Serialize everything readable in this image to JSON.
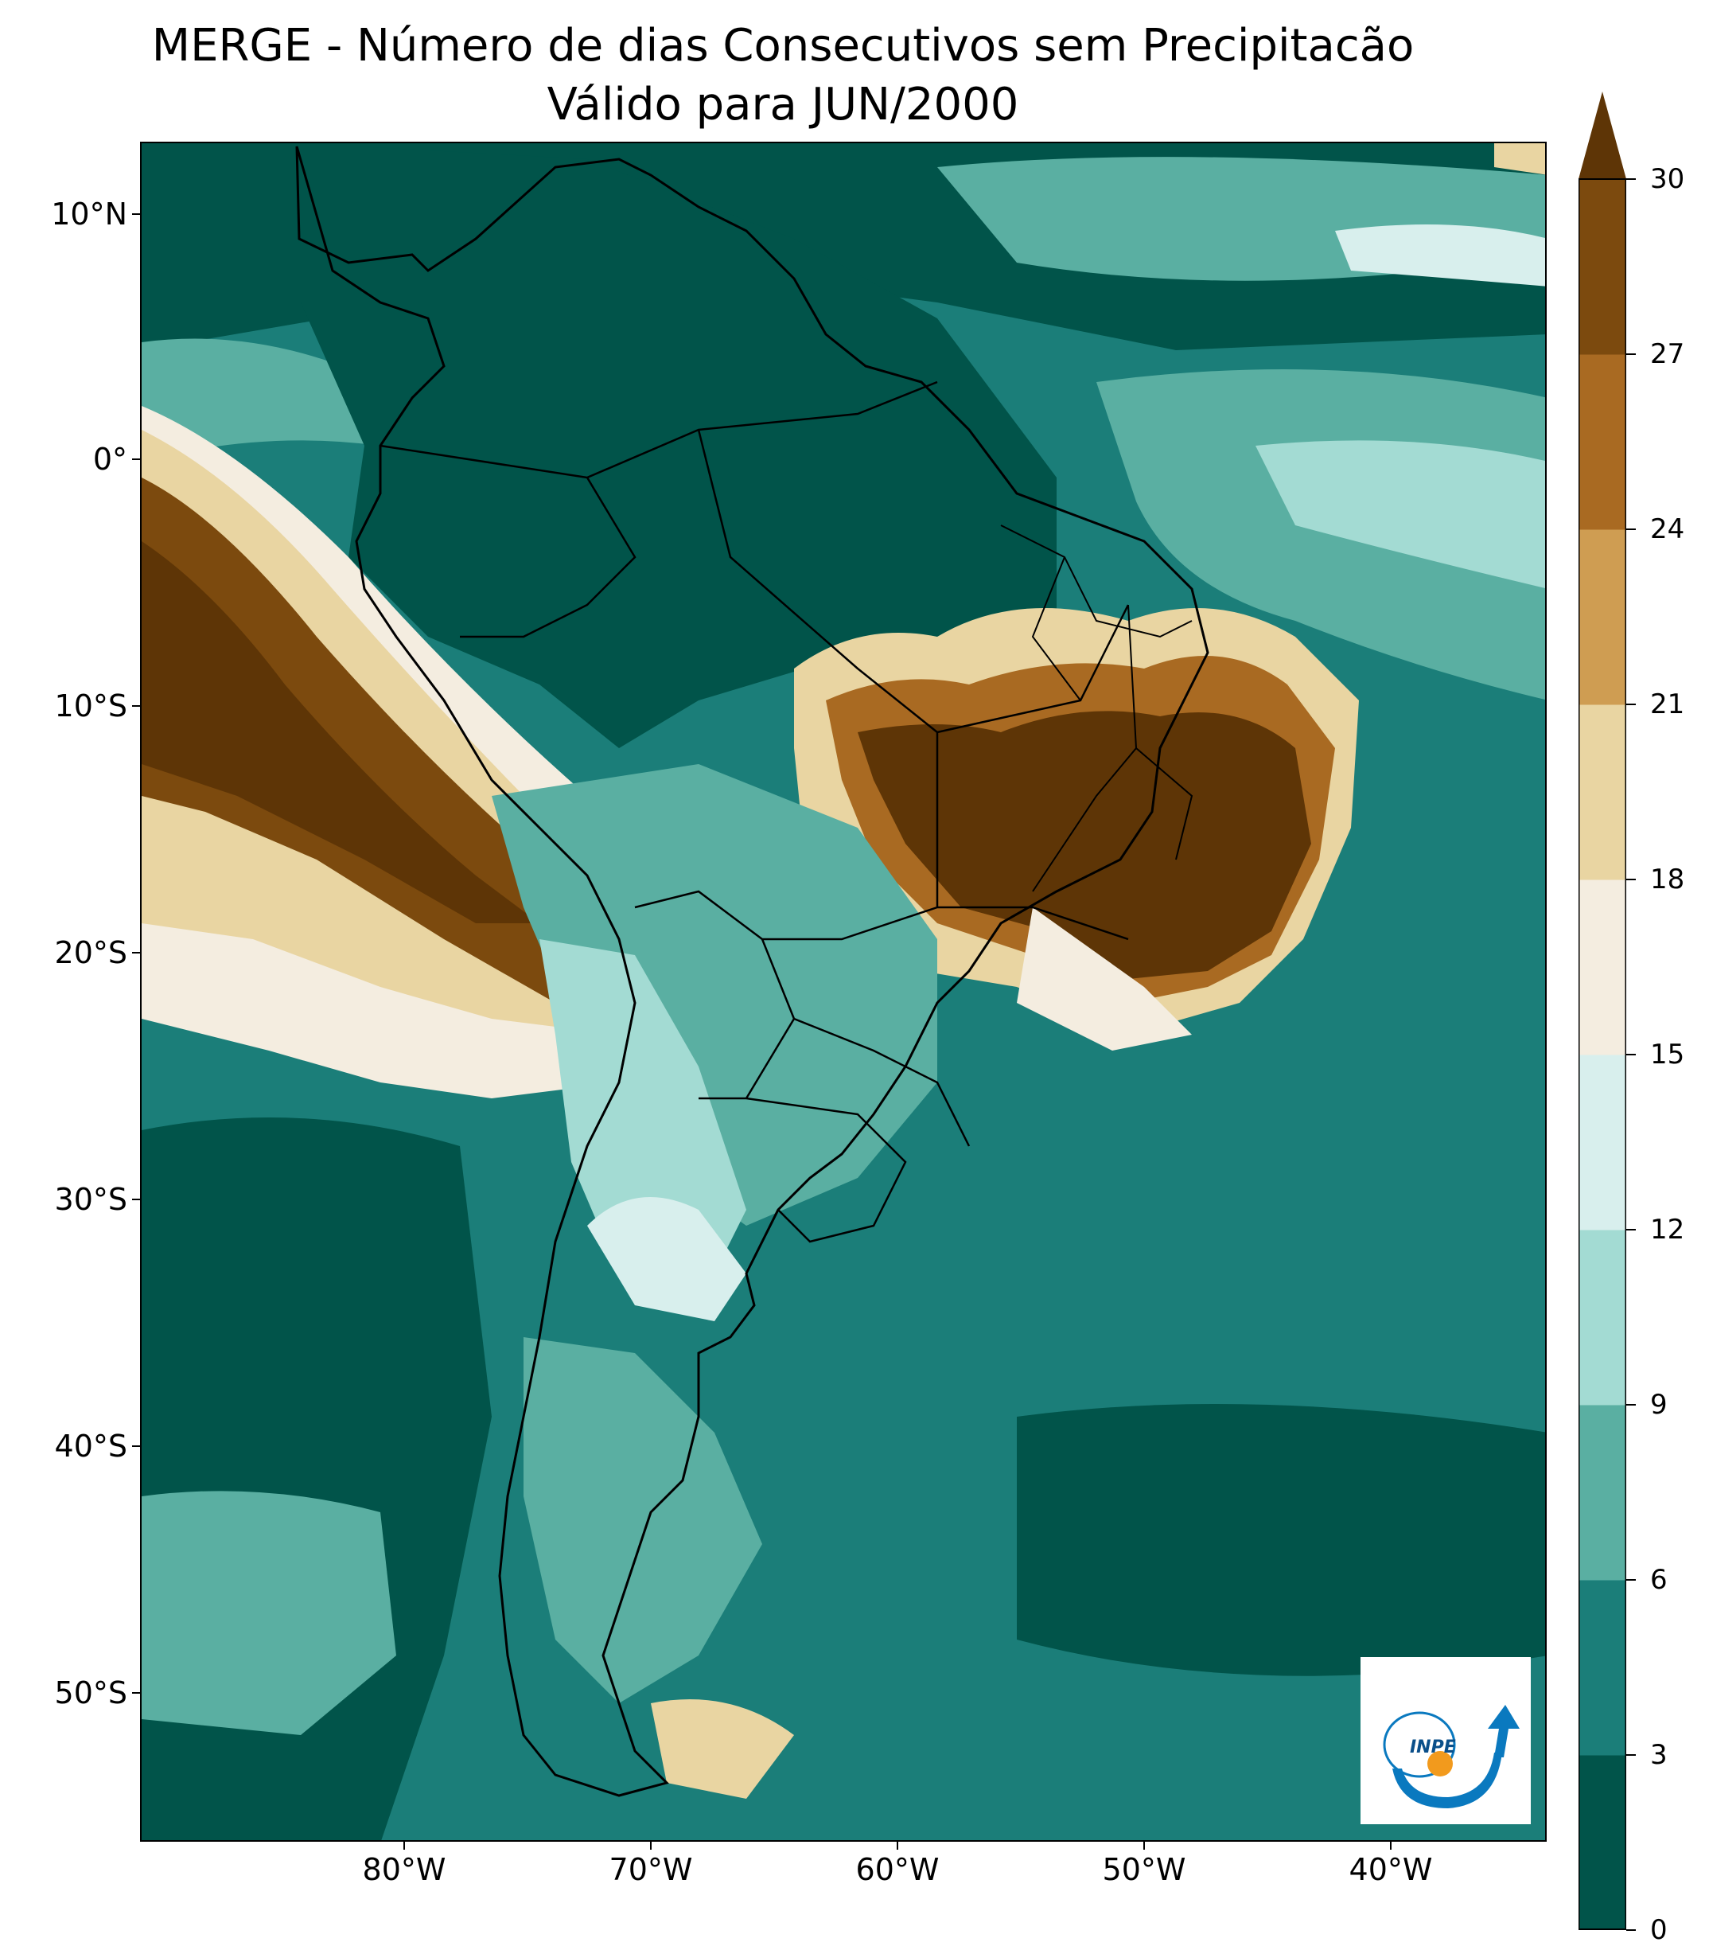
{
  "title": {
    "line1": "MERGE - Número de dias Consecutivos sem Precipitacão",
    "line2": "Válido para JUN/2000"
  },
  "axes": {
    "lat_labels": [
      "10°N",
      "0°",
      "10°S",
      "20°S",
      "30°S",
      "40°S",
      "50°S"
    ],
    "lon_labels": [
      "80°W",
      "70°W",
      "60°W",
      "50°W",
      "40°W"
    ],
    "lat_range": [
      -56,
      13
    ],
    "lon_range": [
      -90,
      -33
    ]
  },
  "colorbar": {
    "ticks": [
      "0",
      "3",
      "6",
      "9",
      "12",
      "15",
      "18",
      "21",
      "24",
      "27",
      "30"
    ],
    "colors": [
      "#01544a",
      "#1b7e79",
      "#5aafa2",
      "#a3dbd3",
      "#d8efed",
      "#f4ede0",
      "#e9d5a2",
      "#cf9d52",
      "#a96a22",
      "#7c4a0e",
      "#5e3506"
    ],
    "extend": "max"
  },
  "logo": {
    "text": "INPE"
  }
}
